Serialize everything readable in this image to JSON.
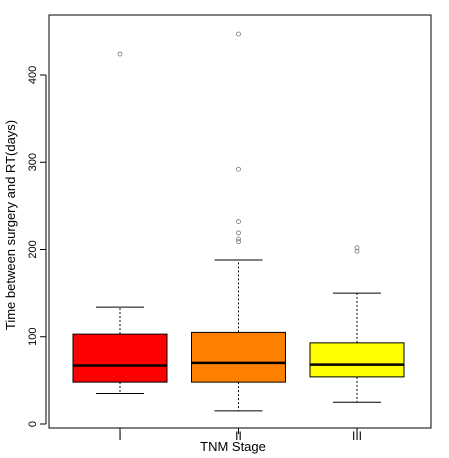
{
  "chart_data": {
    "type": "boxplot",
    "title": "",
    "xlabel": "TNM Stage",
    "ylabel": "Time between surgery and RT(days)",
    "ylim": [
      0,
      450
    ],
    "yticks": [
      0,
      100,
      200,
      300,
      400
    ],
    "categories": [
      "I",
      "II",
      "III"
    ],
    "colors": [
      "#ff0000",
      "#ff8000",
      "#ffff00"
    ],
    "boxes": [
      {
        "category": "I",
        "whisker_low": 35,
        "q1": 48,
        "median": 67,
        "q3": 103,
        "whisker_high": 134,
        "outliers": [
          424
        ]
      },
      {
        "category": "II",
        "whisker_low": 15,
        "q1": 48,
        "median": 70,
        "q3": 105,
        "whisker_high": 188,
        "outliers": [
          447,
          292,
          232,
          219,
          212,
          209
        ]
      },
      {
        "category": "III",
        "whisker_low": 25,
        "q1": 54,
        "median": 68,
        "q3": 93,
        "whisker_high": 150,
        "outliers": [
          202,
          198
        ]
      }
    ],
    "grid": false,
    "legend": "none"
  }
}
